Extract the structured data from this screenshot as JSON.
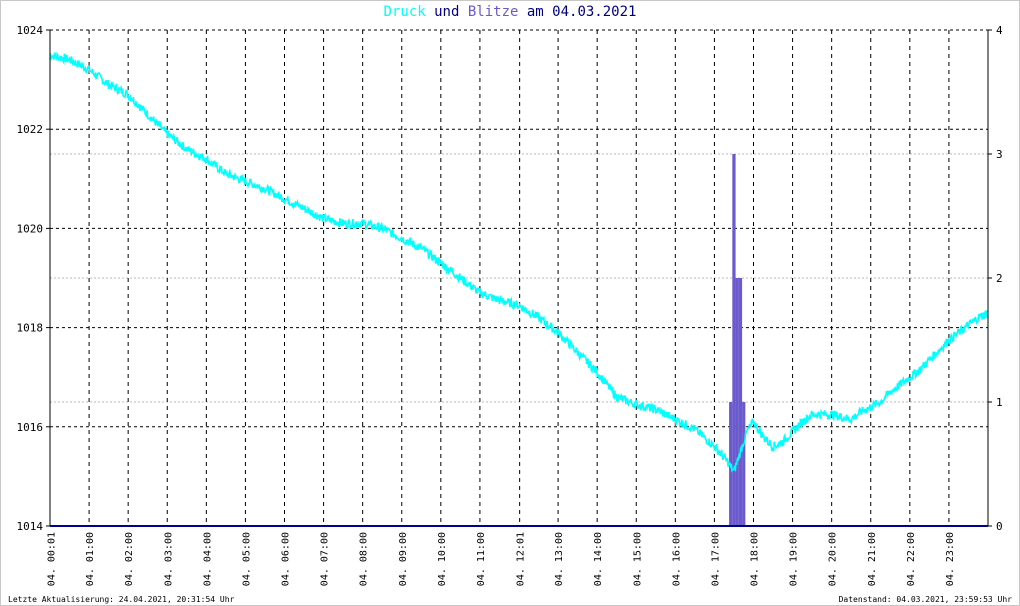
{
  "title": {
    "part1": "Druck",
    "part2": "und",
    "part3": "Blitze",
    "part4": "am 04.03.2021"
  },
  "colors": {
    "pressure": "#00ffff",
    "lightning": "#6a5acd",
    "title_text": "#000080",
    "axis": "#000000",
    "grid": "#000000",
    "baseline": "#00008b"
  },
  "footer": {
    "left": "Letzte Aktualisierung: 24.04.2021, 20:31:54 Uhr",
    "right": "Datenstand: 04.03.2021, 23:59:53 Uhr"
  },
  "chart_data": {
    "type": "line",
    "x_range": [
      0,
      1440
    ],
    "left_axis": {
      "ylim": [
        1014,
        1024
      ],
      "ticks": [
        "1014",
        "1016",
        "1018",
        "1020",
        "1022",
        "1024"
      ]
    },
    "right_axis": {
      "ylim": [
        0,
        4
      ],
      "ticks": [
        "0",
        "1",
        "2",
        "3",
        "4"
      ]
    },
    "x_tick_labels": [
      "04. 00:01",
      "04. 01:00",
      "04. 02:00",
      "04. 03:00",
      "04. 04:00",
      "04. 05:00",
      "04. 06:00",
      "04. 07:00",
      "04. 08:00",
      "04. 09:00",
      "04. 10:00",
      "04. 11:00",
      "04. 12:01",
      "04. 13:00",
      "04. 14:00",
      "04. 15:00",
      "04. 16:00",
      "04. 17:00",
      "04. 18:00",
      "04. 19:00",
      "04. 20:00",
      "04. 21:00",
      "04. 22:00",
      "04. 23:00"
    ],
    "x_tick_minutes": [
      1,
      60,
      120,
      180,
      240,
      300,
      360,
      420,
      480,
      540,
      600,
      660,
      721,
      780,
      840,
      900,
      960,
      1020,
      1080,
      1140,
      1200,
      1260,
      1320,
      1380
    ],
    "grid": true,
    "series": [
      {
        "name": "Druck",
        "axis": "left",
        "x": [
          0,
          30,
          60,
          90,
          120,
          150,
          180,
          210,
          240,
          270,
          300,
          330,
          360,
          390,
          420,
          450,
          480,
          510,
          540,
          570,
          600,
          630,
          660,
          690,
          720,
          750,
          780,
          810,
          840,
          870,
          900,
          930,
          960,
          990,
          1020,
          1040,
          1050,
          1060,
          1070,
          1080,
          1095,
          1110,
          1125,
          1140,
          1155,
          1170,
          1185,
          1200,
          1215,
          1230,
          1245,
          1260,
          1275,
          1290,
          1305,
          1320,
          1335,
          1350,
          1365,
          1380,
          1395,
          1410,
          1425,
          1440
        ],
        "y": [
          1023.5,
          1023.4,
          1023.2,
          1022.9,
          1022.7,
          1022.3,
          1021.9,
          1021.6,
          1021.4,
          1021.1,
          1020.95,
          1020.8,
          1020.6,
          1020.4,
          1020.2,
          1020.1,
          1020.1,
          1020.0,
          1019.8,
          1019.6,
          1019.3,
          1019.0,
          1018.7,
          1018.55,
          1018.45,
          1018.2,
          1017.9,
          1017.5,
          1017.1,
          1016.6,
          1016.45,
          1016.35,
          1016.15,
          1015.95,
          1015.6,
          1015.3,
          1015.1,
          1015.5,
          1015.9,
          1016.1,
          1015.8,
          1015.6,
          1015.7,
          1015.9,
          1016.1,
          1016.25,
          1016.25,
          1016.25,
          1016.2,
          1016.15,
          1016.3,
          1016.4,
          1016.5,
          1016.7,
          1016.85,
          1017.0,
          1017.15,
          1017.35,
          1017.55,
          1017.75,
          1017.9,
          1018.05,
          1018.2,
          1018.3
        ]
      },
      {
        "name": "Blitze",
        "axis": "right",
        "type": "bar",
        "bars": [
          {
            "x": 1045,
            "value": 1
          },
          {
            "x": 1050,
            "value": 3
          },
          {
            "x": 1055,
            "value": 2
          },
          {
            "x": 1060,
            "value": 2
          },
          {
            "x": 1065,
            "value": 1
          }
        ]
      }
    ]
  }
}
